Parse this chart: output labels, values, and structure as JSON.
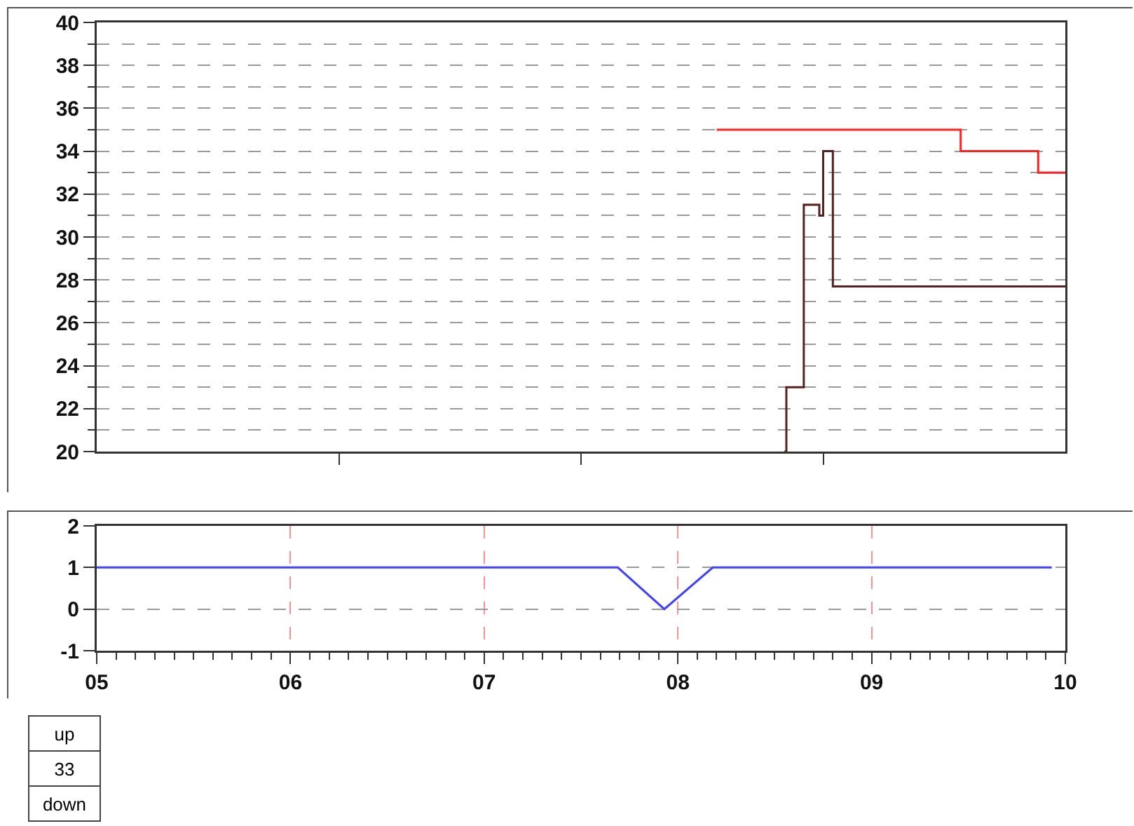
{
  "chart_data": [
    {
      "type": "step",
      "xlim": [
        5,
        10
      ],
      "ylim": [
        20,
        40
      ],
      "xticks": [
        {
          "value": 6.25,
          "label": null
        },
        {
          "value": 7.5,
          "label": null
        },
        {
          "value": 8.75,
          "label": null
        }
      ],
      "yticks": [
        20,
        22,
        24,
        26,
        28,
        30,
        32,
        34,
        36,
        38,
        40
      ],
      "tick_labels": "y",
      "grid": "y",
      "marker": "none",
      "line_style": "solid",
      "series": [
        {
          "color": "#ff2020",
          "x": [
            8.2,
            9.46,
            9.86,
            10
          ],
          "values": [
            35,
            34,
            33,
            33
          ]
        },
        {
          "color": "#5a1f1f",
          "x": [
            8.55,
            8.56,
            8.65,
            8.73,
            8.75,
            8.8,
            10
          ],
          "values": [
            20,
            23,
            31.5,
            31,
            34,
            27.7,
            27.7
          ]
        }
      ]
    },
    {
      "type": "line",
      "xlim": [
        5,
        10
      ],
      "ylim": [
        -1,
        2
      ],
      "xticks": [
        {
          "value": 5,
          "label": "05"
        },
        {
          "value": 6,
          "label": "06"
        },
        {
          "value": 7,
          "label": "07"
        },
        {
          "value": 8,
          "label": "08"
        },
        {
          "value": 9,
          "label": "09"
        },
        {
          "value": 10,
          "label": "10"
        }
      ],
      "yticks": [
        -1,
        0,
        1,
        2
      ],
      "grid": true,
      "marker": "none",
      "line_style": "solid",
      "series": [
        {
          "color": "#4040ff",
          "x": [
            5,
            7.69,
            7.93,
            8.18,
            9.93
          ],
          "values": [
            1,
            1,
            0,
            1,
            1
          ]
        }
      ],
      "annotations": [
        "up",
        "33",
        "down"
      ]
    }
  ]
}
